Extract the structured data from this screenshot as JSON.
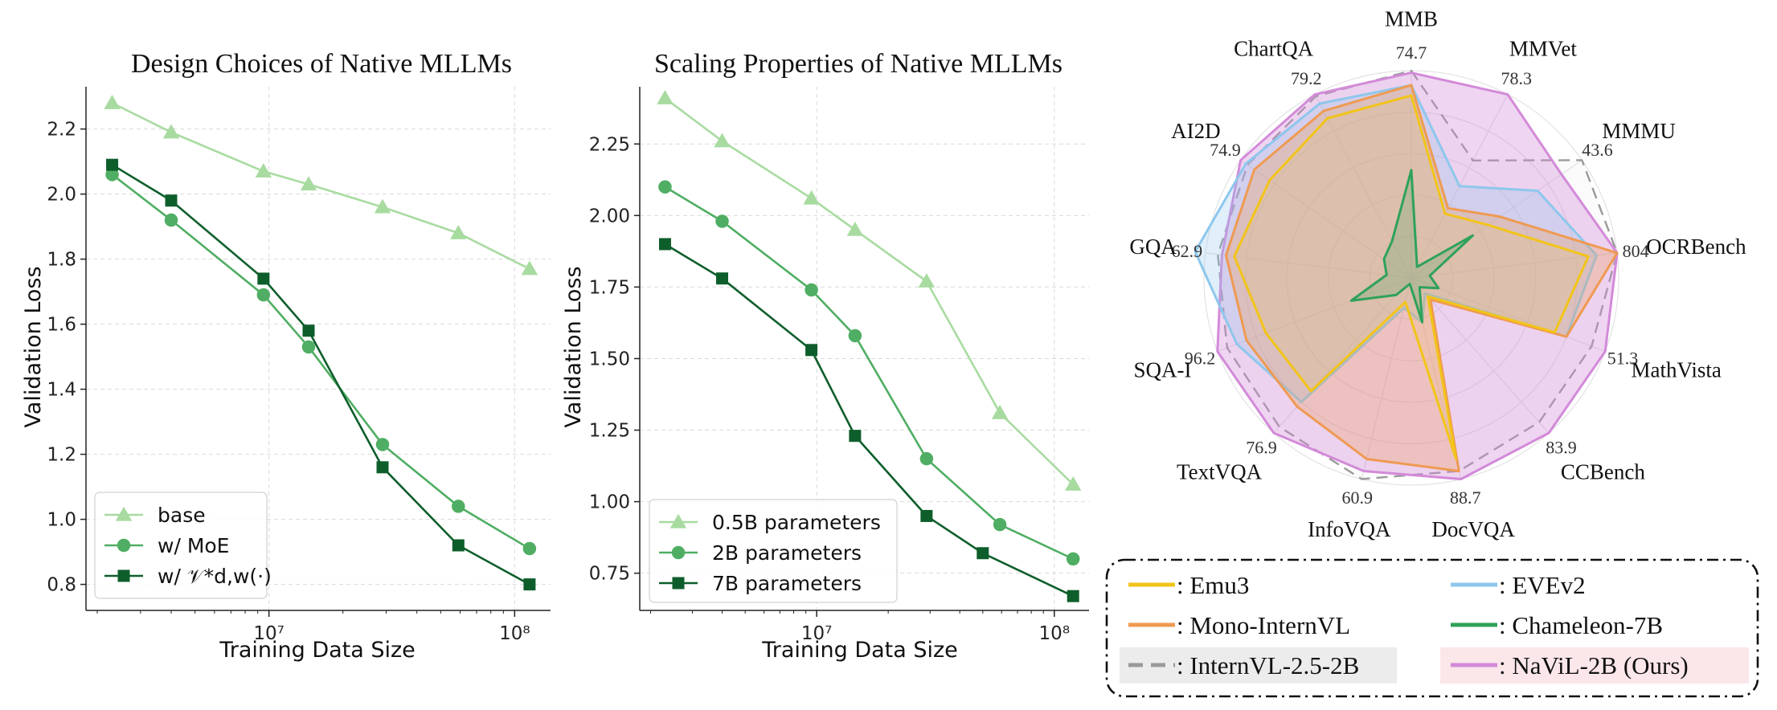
{
  "chart_data": [
    {
      "type": "line",
      "title": "Design Choices of Native MLLMs",
      "xlabel": "Training Data Size",
      "ylabel": "Validation Loss",
      "xscale": "log",
      "xlim": [
        1800000.0,
        140000000.0
      ],
      "ylim": [
        0.72,
        2.33
      ],
      "yticks": [
        0.8,
        1.0,
        1.2,
        1.4,
        1.6,
        1.8,
        2.0,
        2.2
      ],
      "ytick_labels": [
        "0.8",
        "1.0",
        "1.2",
        "1.4",
        "1.6",
        "1.8",
        "2.0",
        "2.2"
      ],
      "xticks": [
        10000000.0,
        100000000.0
      ],
      "xtick_labels": [
        "10⁷",
        "10⁸"
      ],
      "grid": true,
      "legend_position": "bottom-left",
      "x": [
        2300000.0,
        4000000.0,
        9500000.0,
        14500000.0,
        29000000.0,
        59000000.0,
        115000000.0
      ],
      "series": [
        {
          "name": "base",
          "marker": "triangle",
          "color": "#a8dba0",
          "values": [
            2.28,
            2.19,
            2.07,
            2.03,
            1.96,
            1.88,
            1.77
          ]
        },
        {
          "name": "w/ MoE",
          "marker": "circle",
          "color": "#4fae63",
          "values": [
            2.06,
            1.92,
            1.69,
            1.53,
            1.23,
            1.04,
            0.91
          ]
        },
        {
          "name": "w/ 𝒱*d,w(·)",
          "marker": "square",
          "color": "#0e5e2b",
          "values": [
            2.09,
            1.98,
            1.74,
            1.58,
            1.16,
            0.92,
            0.8
          ]
        }
      ]
    },
    {
      "type": "line",
      "title": "Scaling Properties of Native MLLMs",
      "xlabel": "Training Data Size",
      "ylabel": "Validation Loss",
      "xscale": "log",
      "xlim": [
        1800000.0,
        140000000.0
      ],
      "ylim": [
        0.62,
        2.45
      ],
      "yticks": [
        0.75,
        1.0,
        1.25,
        1.5,
        1.75,
        2.0,
        2.25
      ],
      "ytick_labels": [
        "0.75",
        "1.00",
        "1.25",
        "1.50",
        "1.75",
        "2.00",
        "2.25"
      ],
      "xticks": [
        10000000.0,
        100000000.0
      ],
      "xtick_labels": [
        "10⁷",
        "10⁸"
      ],
      "grid": true,
      "legend_position": "bottom-left",
      "x": [
        2300000.0,
        4000000.0,
        9500000.0,
        14500000.0,
        29000000.0,
        59000000.0,
        120000000.0
      ],
      "series": [
        {
          "name": "0.5B parameters",
          "marker": "triangle",
          "color": "#a8dba0",
          "values": [
            2.41,
            2.26,
            2.06,
            1.95,
            1.77,
            1.31,
            1.06
          ]
        },
        {
          "name": "2B parameters",
          "marker": "circle",
          "color": "#4fae63",
          "values": [
            2.1,
            1.98,
            1.74,
            1.58,
            1.15,
            0.92,
            0.8
          ]
        },
        {
          "name": "7B parameters",
          "marker": "square",
          "color": "#0e5e2b",
          "values": [
            1.9,
            1.78,
            1.53,
            1.23,
            0.95,
            0.82,
            0.67
          ]
        }
      ],
      "x_overrides": {
        "7B parameters": [
          2300000.0,
          4000000.0,
          9500000.0,
          14500000.0,
          29000000.0,
          50000000.0,
          120000000.0
        ]
      }
    },
    {
      "type": "radar",
      "categories": [
        "MMB",
        "MMVet",
        "MMMU",
        "OCRBench",
        "MathVista",
        "CCBench",
        "DocVQA",
        "InfoVQA",
        "TextVQA",
        "SQA-I",
        "GQA",
        "AI2D",
        "ChartQA"
      ],
      "category_max_labels": [
        "74.7",
        "78.3",
        "43.6",
        "804",
        "51.3",
        "83.9",
        "88.7",
        "60.9",
        "76.9",
        "96.2",
        "62.9",
        "74.9",
        "79.2"
      ],
      "legend_position": "bottom",
      "series": [
        {
          "name": ": Emu3",
          "color": "#f2c418",
          "style": "solid",
          "values": [
            0.88,
            0.35,
            0.45,
            0.86,
            0.74,
            0.12,
            0.9,
            0.12,
            0.73,
            0.75,
            0.86,
            0.83,
            0.87
          ]
        },
        {
          "name": ": EVEv2",
          "color": "#8ec7ec",
          "style": "solid",
          "values": [
            0.93,
            0.5,
            0.74,
            0.9,
            0.8,
            0.1,
            0.22,
            0.15,
            0.8,
            0.9,
            1.05,
            0.97,
            0.95
          ]
        },
        {
          "name": ": Mono-InternVL",
          "color": "#ef9a52",
          "style": "solid",
          "values": [
            0.93,
            0.38,
            0.52,
            1.0,
            0.8,
            0.14,
            0.96,
            0.9,
            0.83,
            0.85,
            0.9,
            0.92,
            0.91
          ]
        },
        {
          "name": ": Chameleon-7B",
          "color": "#2ea25a",
          "style": "solid",
          "values": [
            0.52,
            0.06,
            0.36,
            0.09,
            0.14,
            0.06,
            0.22,
            0.03,
            0.11,
            0.31,
            0.12,
            0.16,
            0.2
          ]
        },
        {
          "name": ": InternVL-2.5-2B",
          "color": "#9a9a9a",
          "style": "dashed",
          "values": [
            1.0,
            0.64,
            1.0,
            1.0,
            0.93,
            0.93,
            0.96,
            1.0,
            0.96,
            0.95,
            0.94,
            0.96,
            0.99
          ]
        },
        {
          "name": ": NaViL-2B (Ours)",
          "color": "#d38ad9",
          "style": "solid",
          "values": [
            0.99,
            1.0,
            0.88,
            1.0,
            1.0,
            1.0,
            1.0,
            0.96,
            1.0,
            1.0,
            0.92,
            1.0,
            1.0
          ]
        }
      ]
    }
  ]
}
